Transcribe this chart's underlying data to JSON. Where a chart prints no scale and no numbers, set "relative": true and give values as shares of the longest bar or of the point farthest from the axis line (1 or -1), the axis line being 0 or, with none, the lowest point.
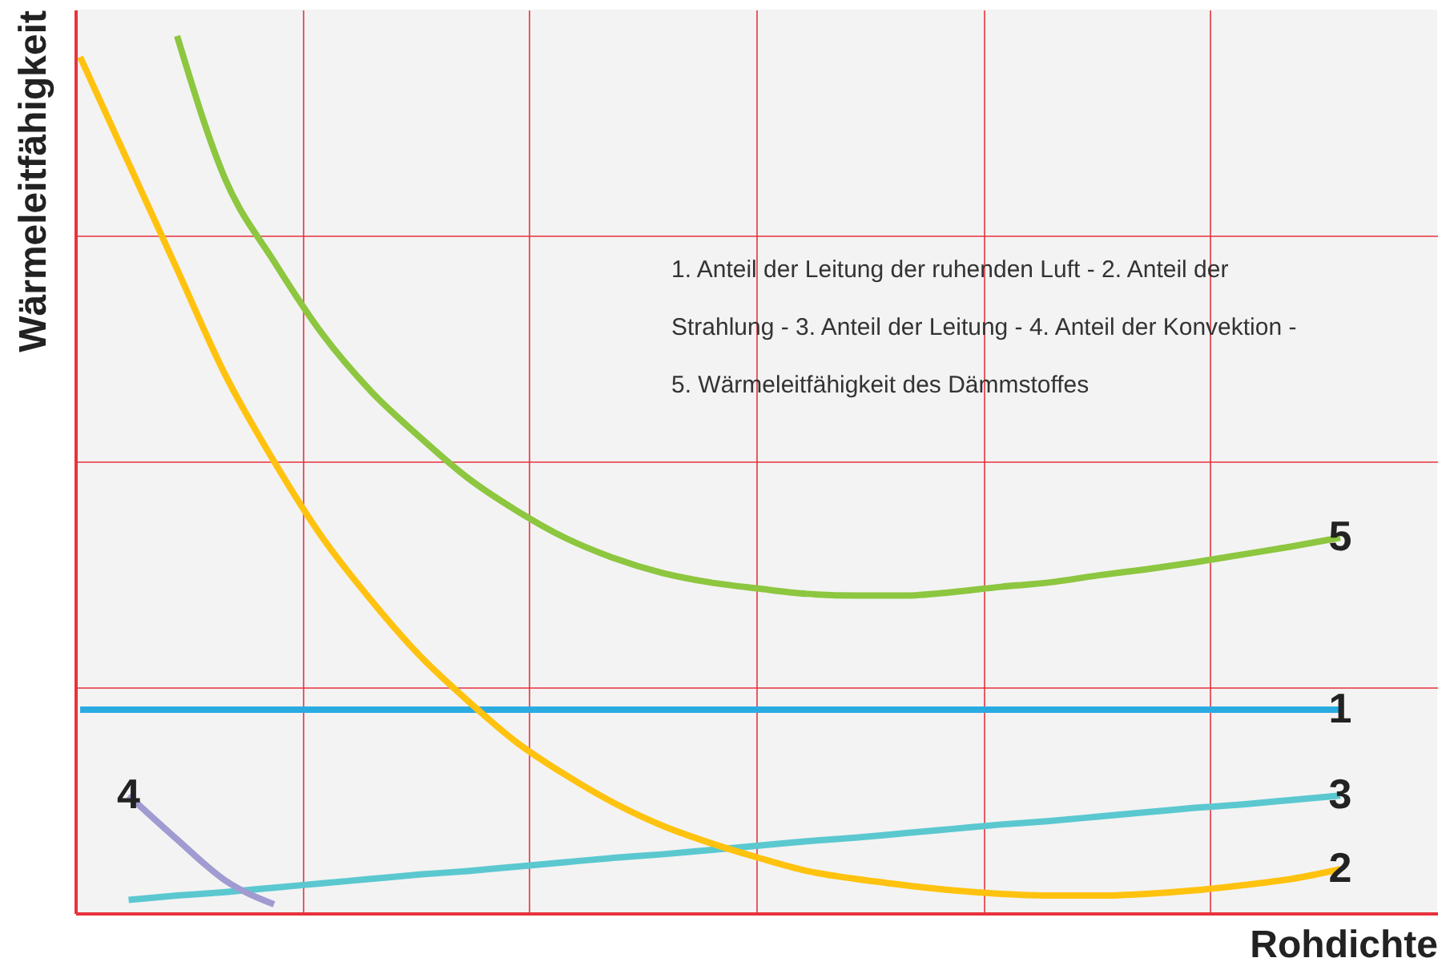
{
  "chart_data": {
    "type": "line",
    "relative": true,
    "xlabel": "Rohdichte",
    "ylabel": "Wärmeleitfähigkeit",
    "annotations": [
      "1. Anteil der Leitung der ruhenden Luft - 2. Anteil der Strahlung - 3. Anteil der Leitung - 4. Anteil der Konvektion - 5. Wärmeleitfähigkeit des Dämmstoffes"
    ],
    "categories": [
      null,
      null,
      null,
      null,
      null,
      null,
      null,
      null,
      null,
      null,
      null,
      null,
      null,
      null,
      null,
      null,
      null,
      null,
      null,
      null,
      null,
      null,
      null,
      null,
      null,
      null,
      null,
      null,
      null
    ],
    "grid": true,
    "marker": "none",
    "line_style": "solid",
    "series": [
      {
        "name": "5",
        "color": "#8dc63f",
        "values": [
          null,
          null,
          1.0,
          0.836,
          0.743,
          0.66,
          0.595,
          0.543,
          0.496,
          0.459,
          0.428,
          0.405,
          0.388,
          0.377,
          0.37,
          0.364,
          0.362,
          0.362,
          0.366,
          0.372,
          0.377,
          0.385,
          0.392,
          0.4,
          0.409,
          0.418,
          0.428,
          null,
          null
        ]
      },
      {
        "name": "1",
        "color": "#29abe2",
        "values": [
          0.232,
          0.232,
          0.232,
          0.232,
          0.232,
          0.232,
          0.232,
          0.232,
          0.232,
          0.232,
          0.232,
          0.232,
          0.232,
          0.232,
          0.232,
          0.232,
          0.232,
          0.232,
          0.232,
          0.232,
          0.232,
          0.232,
          0.232,
          0.232,
          0.232,
          0.232,
          0.232,
          null,
          null
        ]
      },
      {
        "name": "3",
        "color": "#5bc8d0",
        "values": [
          null,
          0.015,
          0.02,
          0.024,
          0.029,
          0.034,
          0.039,
          0.044,
          0.048,
          0.053,
          0.058,
          0.063,
          0.067,
          0.072,
          0.077,
          0.082,
          0.086,
          0.091,
          0.096,
          0.101,
          0.105,
          0.11,
          0.115,
          0.12,
          0.124,
          0.129,
          0.134,
          null,
          null
        ]
      },
      {
        "name": "2",
        "color": "#ffc20e",
        "values": [
          0.976,
          0.855,
          0.734,
          0.613,
          0.515,
          0.428,
          0.357,
          0.294,
          0.242,
          0.195,
          0.158,
          0.126,
          0.1,
          0.08,
          0.063,
          0.048,
          0.039,
          0.032,
          0.026,
          0.022,
          0.02,
          0.02,
          0.022,
          0.026,
          0.032,
          0.039,
          0.05,
          null,
          null
        ]
      },
      {
        "name": "4",
        "color": "#a09bd0",
        "values": [
          null,
          0.134,
          0.084,
          0.037,
          0.01,
          null,
          null,
          null,
          null,
          null,
          null,
          null,
          null,
          null,
          null,
          null,
          null,
          null,
          null,
          null,
          null,
          null,
          null,
          null,
          null,
          null,
          null,
          null,
          null
        ]
      }
    ]
  }
}
